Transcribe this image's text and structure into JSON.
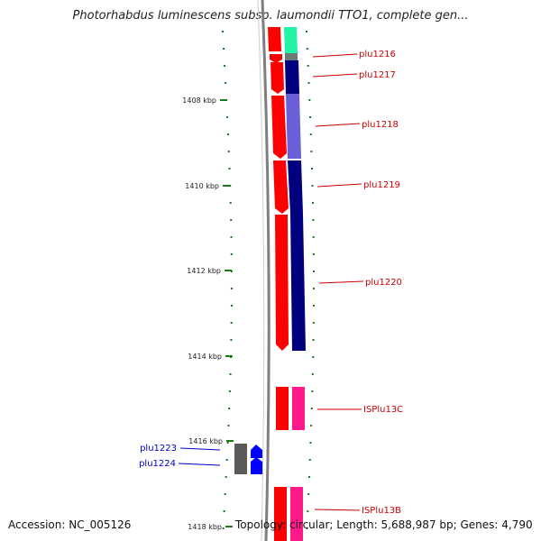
{
  "header": {
    "title": "Photorhabdus luminescens subsp. laumondii TTO1, complete gen..."
  },
  "footer": {
    "accession": "Accession: NC_005126",
    "summary": "Topology: circular; Length: 5,688,987 bp; Genes: 4,790"
  },
  "ruler": {
    "ticks": [
      "1408 kbp",
      "1410 kbp",
      "1412 kbp",
      "1414 kbp",
      "1416 kbp",
      "1418 kbp"
    ]
  },
  "genes": {
    "right_labels": [
      "plu1216",
      "plu1217",
      "plu1218",
      "plu1219",
      "plu1220",
      "ISPlu13C",
      "ISPlu13B"
    ],
    "left_labels": [
      "plu1223",
      "plu1224"
    ]
  },
  "colors": {
    "forward_cds": "#ff0000",
    "reverse_cds": "#00007f",
    "reverse_cds_light": "#6a5fd6",
    "rna": "#22f3a6",
    "insertion": "#ff1a8c",
    "gray_feature": "#5a5a5a",
    "blue_feature": "#0000ff",
    "label_red": "#cc0000",
    "label_blue": "#0000cc",
    "tick_green": "#1a7a1a"
  }
}
